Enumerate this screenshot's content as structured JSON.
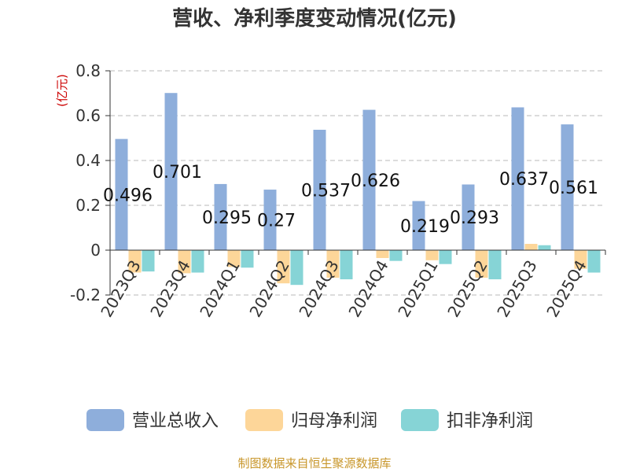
{
  "chart_data": {
    "type": "bar",
    "title": "营收、净利季度变动情况(亿元)",
    "unit_label": "(亿元)",
    "categories": [
      "2023Q3",
      "2023Q4",
      "2024Q1",
      "2024Q2",
      "2024Q3",
      "2024Q4",
      "2025Q1",
      "2025Q2",
      "2025Q3",
      "2025Q4"
    ],
    "series": [
      {
        "name": "营业总收入",
        "color": "#8eaedb",
        "values": [
          0.496,
          0.701,
          0.295,
          0.27,
          0.537,
          0.626,
          0.219,
          0.293,
          0.637,
          0.561
        ],
        "show_labels": true
      },
      {
        "name": "归母净利润",
        "color": "#fdd699",
        "values": [
          -0.1,
          -0.103,
          -0.075,
          -0.148,
          -0.123,
          -0.035,
          -0.045,
          -0.123,
          0.028,
          -0.083
        ],
        "show_labels": false
      },
      {
        "name": "扣非净利润",
        "color": "#86d4d6",
        "values": [
          -0.095,
          -0.1,
          -0.078,
          -0.155,
          -0.13,
          -0.048,
          -0.062,
          -0.13,
          0.022,
          -0.1
        ],
        "show_labels": false
      }
    ],
    "y_ticks": [
      "0.8",
      "0.6",
      "0.4",
      "0.2",
      "0",
      "-0.2"
    ],
    "y_tick_values": [
      0.8,
      0.6,
      0.4,
      0.2,
      0,
      -0.2
    ],
    "ylim": [
      -0.2,
      0.8
    ],
    "grid": true,
    "legend_position": "bottom"
  },
  "source": "制图数据来自恒生聚源数据库"
}
